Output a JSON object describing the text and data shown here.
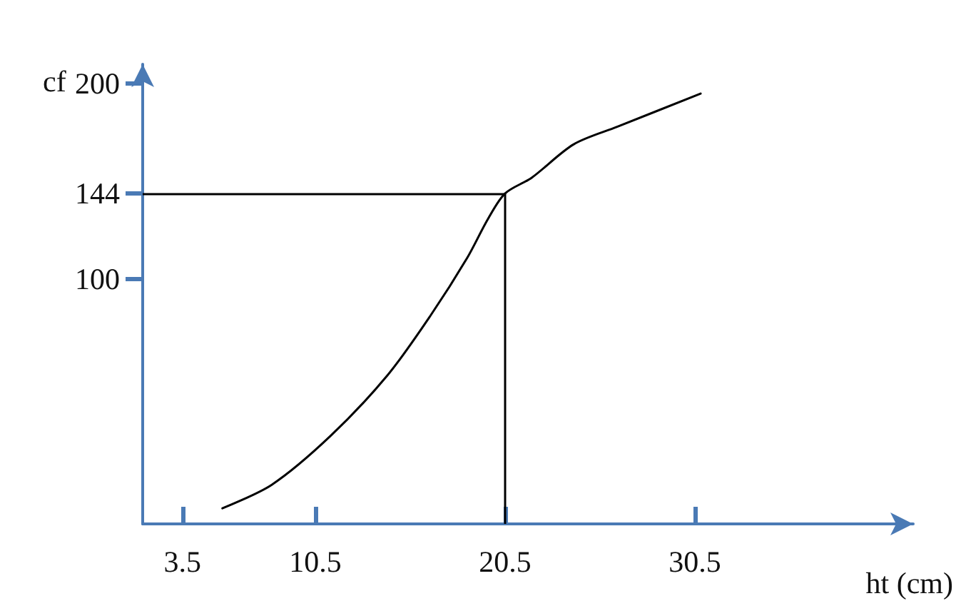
{
  "chart_data": {
    "type": "line",
    "xlabel": "ht (cm)",
    "ylabel": "cf",
    "x": [
      5.6,
      8.2,
      11.3,
      14.3,
      16.6,
      18.5,
      19.6,
      20.5,
      21.9,
      24.1,
      26.4,
      30.8
    ],
    "series": [
      {
        "color": "#000000",
        "values": [
          -17,
          -5,
          20,
          51,
          82,
          111,
          131,
          144,
          152,
          169,
          178,
          195
        ]
      }
    ],
    "xlim": [
      1.4,
      42
    ],
    "xticks": [
      3.5,
      10.5,
      20.5,
      30.5
    ],
    "ylim": [
      -25,
      210
    ],
    "yticks": [
      100,
      144,
      200
    ],
    "ref_lines": [
      {
        "axis": "y",
        "value": 144,
        "color": "#000000"
      },
      {
        "axis": "x",
        "value": 20.5,
        "color": "#000000"
      }
    ],
    "marker": "none",
    "line_style": "solid"
  }
}
